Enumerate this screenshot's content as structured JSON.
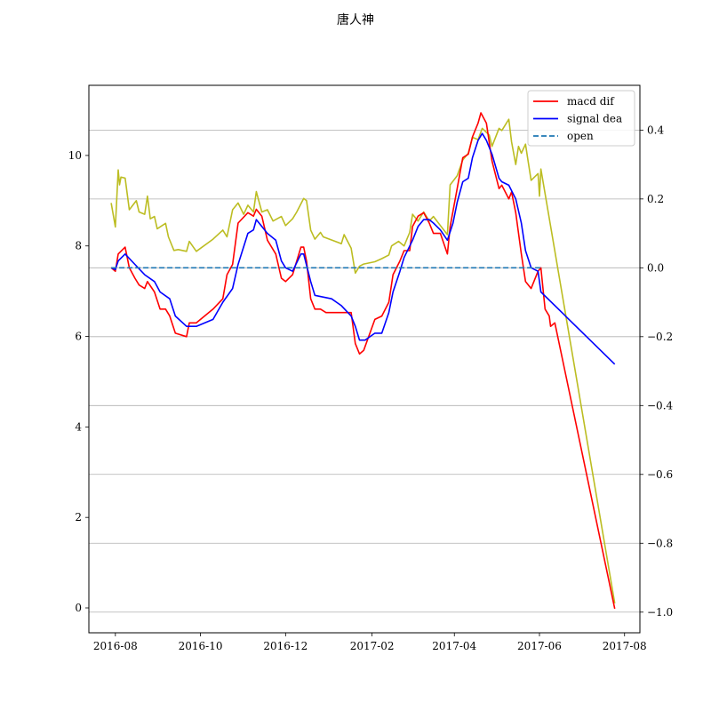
{
  "chart_data": {
    "type": "line",
    "title": "唐人神",
    "grid": "right-axis horizontal",
    "legend_position": "top-right",
    "x_axis": {
      "type": "date",
      "range": [
        "2016-07-13",
        "2017-08-12"
      ],
      "ticks": [
        "2016-08-01",
        "2016-10-01",
        "2016-12-01",
        "2017-02-01",
        "2017-04-01",
        "2017-06-01",
        "2017-08-01"
      ],
      "tick_labels": [
        "2016-08",
        "2016-10",
        "2016-12",
        "2017-02",
        "2017-04",
        "2017-06",
        "2017-08"
      ]
    },
    "left_axis": {
      "range": [
        -0.55,
        11.55
      ],
      "ticks": [
        0,
        2,
        4,
        6,
        8,
        10
      ],
      "tick_labels": [
        "0",
        "2",
        "4",
        "6",
        "8",
        "10"
      ]
    },
    "right_axis": {
      "range": [
        -1.06,
        0.53
      ],
      "ticks": [
        -1.0,
        -0.8,
        -0.6,
        -0.4,
        -0.2,
        0.0,
        0.2,
        0.4
      ],
      "tick_labels": [
        "−1.0",
        "−0.8",
        "−0.6",
        "−0.4",
        "−0.2",
        "0.0",
        "0.2",
        "0.4"
      ]
    },
    "legend": [
      {
        "label": "macd dif",
        "color": "#ff0000",
        "style": "solid"
      },
      {
        "label": "signal dea",
        "color": "#0000ff",
        "style": "solid"
      },
      {
        "label": "open",
        "color": "#1f77b4",
        "style": "dashed"
      }
    ],
    "series": [
      {
        "name": "open",
        "color": "#bcbd22",
        "axis": "left",
        "points": [
          [
            "2016-07-29",
            8.95
          ],
          [
            "2016-08-01",
            8.42
          ],
          [
            "2016-08-03",
            9.68
          ],
          [
            "2016-08-04",
            9.35
          ],
          [
            "2016-08-05",
            9.52
          ],
          [
            "2016-08-08",
            9.5
          ],
          [
            "2016-08-11",
            8.8
          ],
          [
            "2016-08-16",
            9.0
          ],
          [
            "2016-08-18",
            8.75
          ],
          [
            "2016-08-22",
            8.7
          ],
          [
            "2016-08-24",
            9.1
          ],
          [
            "2016-08-26",
            8.6
          ],
          [
            "2016-08-29",
            8.65
          ],
          [
            "2016-08-31",
            8.38
          ],
          [
            "2016-09-06",
            8.5
          ],
          [
            "2016-09-08",
            8.2
          ],
          [
            "2016-09-12",
            7.9
          ],
          [
            "2016-09-15",
            7.92
          ],
          [
            "2016-09-21",
            7.88
          ],
          [
            "2016-09-23",
            8.1
          ],
          [
            "2016-09-28",
            7.88
          ],
          [
            "2016-10-10",
            8.15
          ],
          [
            "2016-10-17",
            8.35
          ],
          [
            "2016-10-20",
            8.2
          ],
          [
            "2016-10-24",
            8.8
          ],
          [
            "2016-10-28",
            8.95
          ],
          [
            "2016-11-01",
            8.7
          ],
          [
            "2016-11-04",
            8.9
          ],
          [
            "2016-11-08",
            8.75
          ],
          [
            "2016-11-10",
            9.2
          ],
          [
            "2016-11-14",
            8.75
          ],
          [
            "2016-11-18",
            8.8
          ],
          [
            "2016-11-22",
            8.55
          ],
          [
            "2016-11-28",
            8.65
          ],
          [
            "2016-12-01",
            8.45
          ],
          [
            "2016-12-06",
            8.6
          ],
          [
            "2016-12-09",
            8.75
          ],
          [
            "2016-12-14",
            9.05
          ],
          [
            "2016-12-16",
            9.0
          ],
          [
            "2016-12-19",
            8.35
          ],
          [
            "2016-12-22",
            8.15
          ],
          [
            "2016-12-26",
            8.3
          ],
          [
            "2016-12-28",
            8.2
          ],
          [
            "2017-01-10",
            8.05
          ],
          [
            "2017-01-12",
            8.25
          ],
          [
            "2017-01-17",
            7.95
          ],
          [
            "2017-01-20",
            7.4
          ],
          [
            "2017-01-23",
            7.55
          ],
          [
            "2017-01-26",
            7.6
          ],
          [
            "2017-02-03",
            7.65
          ],
          [
            "2017-02-08",
            7.72
          ],
          [
            "2017-02-13",
            7.8
          ],
          [
            "2017-02-15",
            8.0
          ],
          [
            "2017-02-20",
            8.1
          ],
          [
            "2017-02-24",
            8.0
          ],
          [
            "2017-02-28",
            8.3
          ],
          [
            "2017-03-02",
            8.7
          ],
          [
            "2017-03-06",
            8.55
          ],
          [
            "2017-03-10",
            8.75
          ],
          [
            "2017-03-14",
            8.55
          ],
          [
            "2017-03-17",
            8.65
          ],
          [
            "2017-03-22",
            8.45
          ],
          [
            "2017-03-27",
            8.25
          ],
          [
            "2017-03-29",
            9.35
          ],
          [
            "2017-04-03",
            9.55
          ],
          [
            "2017-04-07",
            9.9
          ],
          [
            "2017-04-11",
            10.05
          ],
          [
            "2017-04-14",
            10.4
          ],
          [
            "2017-04-18",
            10.35
          ],
          [
            "2017-04-21",
            10.6
          ],
          [
            "2017-04-26",
            10.45
          ],
          [
            "2017-04-28",
            10.2
          ],
          [
            "2017-05-03",
            10.6
          ],
          [
            "2017-05-05",
            10.55
          ],
          [
            "2017-05-10",
            10.8
          ],
          [
            "2017-05-12",
            10.3
          ],
          [
            "2017-05-15",
            9.8
          ],
          [
            "2017-05-17",
            10.2
          ],
          [
            "2017-05-19",
            10.05
          ],
          [
            "2017-05-22",
            10.25
          ],
          [
            "2017-05-24",
            9.85
          ],
          [
            "2017-05-26",
            9.45
          ],
          [
            "2017-05-31",
            9.6
          ],
          [
            "2017-06-01",
            9.1
          ],
          [
            "2017-06-02",
            9.7
          ],
          [
            "2017-07-25",
            0.1
          ]
        ]
      },
      {
        "name": "macd dif",
        "color": "#ff0000",
        "axis": "right",
        "points": [
          [
            "2016-07-29",
            0.0
          ],
          [
            "2016-08-01",
            -0.01
          ],
          [
            "2016-08-03",
            0.04
          ],
          [
            "2016-08-08",
            0.06
          ],
          [
            "2016-08-11",
            0.0
          ],
          [
            "2016-08-15",
            -0.03
          ],
          [
            "2016-08-18",
            -0.05
          ],
          [
            "2016-08-22",
            -0.06
          ],
          [
            "2016-08-24",
            -0.04
          ],
          [
            "2016-08-29",
            -0.07
          ],
          [
            "2016-09-02",
            -0.12
          ],
          [
            "2016-09-06",
            -0.12
          ],
          [
            "2016-09-09",
            -0.14
          ],
          [
            "2016-09-13",
            -0.19
          ],
          [
            "2016-09-21",
            -0.2
          ],
          [
            "2016-09-23",
            -0.16
          ],
          [
            "2016-09-28",
            -0.16
          ],
          [
            "2016-10-10",
            -0.12
          ],
          [
            "2016-10-17",
            -0.09
          ],
          [
            "2016-10-20",
            -0.02
          ],
          [
            "2016-10-24",
            0.01
          ],
          [
            "2016-10-28",
            0.13
          ],
          [
            "2016-11-04",
            0.16
          ],
          [
            "2016-11-08",
            0.15
          ],
          [
            "2016-11-10",
            0.17
          ],
          [
            "2016-11-14",
            0.15
          ],
          [
            "2016-11-18",
            0.08
          ],
          [
            "2016-11-24",
            0.04
          ],
          [
            "2016-11-28",
            -0.03
          ],
          [
            "2016-12-01",
            -0.04
          ],
          [
            "2016-12-06",
            -0.02
          ],
          [
            "2016-12-09",
            0.02
          ],
          [
            "2016-12-12",
            0.06
          ],
          [
            "2016-12-14",
            0.06
          ],
          [
            "2016-12-16",
            0.02
          ],
          [
            "2016-12-19",
            -0.09
          ],
          [
            "2016-12-22",
            -0.12
          ],
          [
            "2016-12-26",
            -0.12
          ],
          [
            "2016-12-30",
            -0.13
          ],
          [
            "2017-01-10",
            -0.13
          ],
          [
            "2017-01-17",
            -0.13
          ],
          [
            "2017-01-20",
            -0.22
          ],
          [
            "2017-01-23",
            -0.25
          ],
          [
            "2017-01-26",
            -0.24
          ],
          [
            "2017-02-03",
            -0.15
          ],
          [
            "2017-02-08",
            -0.14
          ],
          [
            "2017-02-13",
            -0.1
          ],
          [
            "2017-02-16",
            -0.02
          ],
          [
            "2017-02-21",
            0.02
          ],
          [
            "2017-02-24",
            0.05
          ],
          [
            "2017-02-28",
            0.05
          ],
          [
            "2017-03-02",
            0.12
          ],
          [
            "2017-03-06",
            0.15
          ],
          [
            "2017-03-10",
            0.16
          ],
          [
            "2017-03-14",
            0.13
          ],
          [
            "2017-03-17",
            0.1
          ],
          [
            "2017-03-22",
            0.1
          ],
          [
            "2017-03-27",
            0.04
          ],
          [
            "2017-03-29",
            0.12
          ],
          [
            "2017-04-03",
            0.23
          ],
          [
            "2017-04-07",
            0.32
          ],
          [
            "2017-04-11",
            0.33
          ],
          [
            "2017-04-14",
            0.38
          ],
          [
            "2017-04-18",
            0.42
          ],
          [
            "2017-04-20",
            0.45
          ],
          [
            "2017-04-24",
            0.42
          ],
          [
            "2017-04-28",
            0.31
          ],
          [
            "2017-05-03",
            0.23
          ],
          [
            "2017-05-05",
            0.24
          ],
          [
            "2017-05-10",
            0.2
          ],
          [
            "2017-05-12",
            0.22
          ],
          [
            "2017-05-15",
            0.16
          ],
          [
            "2017-05-19",
            0.04
          ],
          [
            "2017-05-22",
            -0.04
          ],
          [
            "2017-05-26",
            -0.06
          ],
          [
            "2017-05-31",
            -0.01
          ],
          [
            "2017-06-02",
            0.0
          ],
          [
            "2017-06-05",
            -0.12
          ],
          [
            "2017-06-08",
            -0.14
          ],
          [
            "2017-06-09",
            -0.17
          ],
          [
            "2017-06-12",
            -0.16
          ],
          [
            "2017-07-25",
            -0.99
          ]
        ]
      },
      {
        "name": "signal dea",
        "color": "#0000ff",
        "axis": "right",
        "points": [
          [
            "2016-07-29",
            0.0
          ],
          [
            "2016-08-01",
            -0.005
          ],
          [
            "2016-08-03",
            0.02
          ],
          [
            "2016-08-08",
            0.04
          ],
          [
            "2016-08-15",
            0.01
          ],
          [
            "2016-08-22",
            -0.02
          ],
          [
            "2016-08-29",
            -0.04
          ],
          [
            "2016-09-02",
            -0.07
          ],
          [
            "2016-09-09",
            -0.09
          ],
          [
            "2016-09-13",
            -0.14
          ],
          [
            "2016-09-21",
            -0.17
          ],
          [
            "2016-09-28",
            -0.17
          ],
          [
            "2016-10-10",
            -0.15
          ],
          [
            "2016-10-17",
            -0.1
          ],
          [
            "2016-10-24",
            -0.06
          ],
          [
            "2016-10-28",
            0.01
          ],
          [
            "2016-11-04",
            0.1
          ],
          [
            "2016-11-08",
            0.11
          ],
          [
            "2016-11-10",
            0.14
          ],
          [
            "2016-11-18",
            0.1
          ],
          [
            "2016-11-24",
            0.08
          ],
          [
            "2016-11-28",
            0.02
          ],
          [
            "2016-12-01",
            0.0
          ],
          [
            "2016-12-06",
            -0.01
          ],
          [
            "2016-12-12",
            0.04
          ],
          [
            "2016-12-14",
            0.04
          ],
          [
            "2016-12-19",
            -0.04
          ],
          [
            "2016-12-22",
            -0.08
          ],
          [
            "2017-01-03",
            -0.09
          ],
          [
            "2017-01-10",
            -0.11
          ],
          [
            "2017-01-17",
            -0.14
          ],
          [
            "2017-01-20",
            -0.17
          ],
          [
            "2017-01-23",
            -0.21
          ],
          [
            "2017-01-27",
            -0.21
          ],
          [
            "2017-02-03",
            -0.19
          ],
          [
            "2017-02-08",
            -0.19
          ],
          [
            "2017-02-13",
            -0.13
          ],
          [
            "2017-02-16",
            -0.07
          ],
          [
            "2017-02-21",
            -0.01
          ],
          [
            "2017-02-24",
            0.03
          ],
          [
            "2017-03-02",
            0.08
          ],
          [
            "2017-03-06",
            0.12
          ],
          [
            "2017-03-10",
            0.14
          ],
          [
            "2017-03-14",
            0.14
          ],
          [
            "2017-03-17",
            0.13
          ],
          [
            "2017-03-22",
            0.11
          ],
          [
            "2017-03-27",
            0.08
          ],
          [
            "2017-03-31",
            0.13
          ],
          [
            "2017-04-03",
            0.19
          ],
          [
            "2017-04-07",
            0.25
          ],
          [
            "2017-04-11",
            0.26
          ],
          [
            "2017-04-14",
            0.32
          ],
          [
            "2017-04-18",
            0.37
          ],
          [
            "2017-04-21",
            0.39
          ],
          [
            "2017-04-24",
            0.37
          ],
          [
            "2017-04-28",
            0.33
          ],
          [
            "2017-05-03",
            0.26
          ],
          [
            "2017-05-05",
            0.25
          ],
          [
            "2017-05-10",
            0.24
          ],
          [
            "2017-05-15",
            0.2
          ],
          [
            "2017-05-19",
            0.13
          ],
          [
            "2017-05-22",
            0.05
          ],
          [
            "2017-05-26",
            0.0
          ],
          [
            "2017-05-31",
            -0.01
          ],
          [
            "2017-06-02",
            -0.07
          ],
          [
            "2017-07-25",
            -0.28
          ]
        ]
      },
      {
        "name": "open",
        "color": "#1f77b4",
        "axis": "right",
        "dashed": true,
        "points": [
          [
            "2016-07-29",
            0.0
          ],
          [
            "2017-06-02",
            0.0
          ]
        ]
      }
    ]
  }
}
